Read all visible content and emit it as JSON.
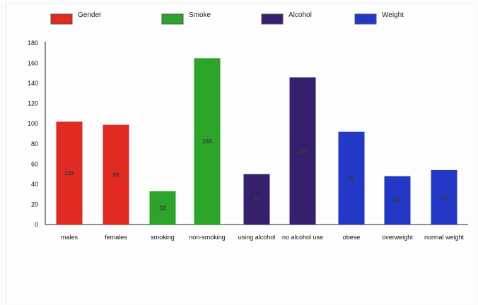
{
  "chart_data": {
    "type": "bar",
    "title": "",
    "xlabel": "",
    "ylabel": "",
    "ylim": [
      0,
      180
    ],
    "yticks": [
      0,
      20,
      40,
      60,
      80,
      100,
      120,
      140,
      160,
      180
    ],
    "grid": false,
    "legend_position": "top",
    "legend": [
      {
        "name": "Gender",
        "color": "#e02a22"
      },
      {
        "name": "Smoke",
        "color": "#2aa52a"
      },
      {
        "name": "Alcohol",
        "color": "#35206e"
      },
      {
        "name": "Weight",
        "color": "#2438c8"
      }
    ],
    "categories": [
      "males",
      "females",
      "smoking",
      "non-smoking",
      "using alcohol",
      "no alcohol use",
      "obese",
      "overweight",
      "normal weight"
    ],
    "values": [
      102,
      99,
      33,
      165,
      50,
      146,
      92,
      48,
      54
    ],
    "bar_groups": [
      "Gender",
      "Gender",
      "Smoke",
      "Smoke",
      "Alcohol",
      "Alcohol",
      "Weight",
      "Weight",
      "Weight"
    ],
    "data_labels": [
      "102",
      "99",
      "33",
      "165",
      "50",
      "146",
      "92",
      "48",
      "54"
    ]
  }
}
